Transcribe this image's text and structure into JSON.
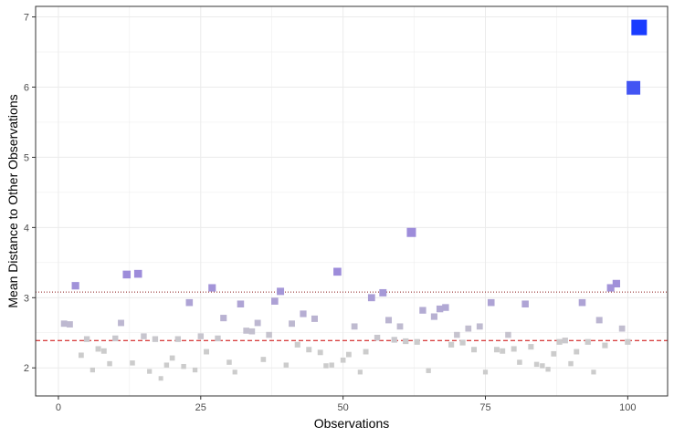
{
  "chart_data": {
    "type": "scatter",
    "title": "",
    "xlabel": "Observations",
    "ylabel": "Mean Distance to Other Observations",
    "xlim": [
      -4,
      107
    ],
    "ylim": [
      1.6,
      7.15
    ],
    "x_ticks": [
      0,
      25,
      50,
      75,
      100
    ],
    "y_ticks": [
      2,
      3,
      4,
      5,
      6,
      7
    ],
    "x_tick_labels": [
      "0",
      "25",
      "50",
      "75",
      "100"
    ],
    "y_tick_labels": [
      "2",
      "3",
      "4",
      "5",
      "6",
      "7"
    ],
    "grid": true,
    "reference_lines": [
      {
        "y": 2.39,
        "style": "dashed",
        "color": "#cc0000"
      },
      {
        "y": 3.08,
        "style": "dotted",
        "color": "#8b1a1a"
      }
    ],
    "x": [
      1,
      2,
      3,
      4,
      5,
      6,
      7,
      8,
      9,
      10,
      11,
      12,
      13,
      14,
      15,
      16,
      17,
      18,
      19,
      20,
      21,
      22,
      23,
      24,
      25,
      26,
      27,
      28,
      29,
      30,
      31,
      32,
      33,
      34,
      35,
      36,
      37,
      38,
      39,
      40,
      41,
      42,
      43,
      44,
      45,
      46,
      47,
      48,
      49,
      50,
      51,
      52,
      53,
      54,
      55,
      56,
      57,
      58,
      59,
      60,
      61,
      62,
      63,
      64,
      65,
      66,
      67,
      68,
      69,
      70,
      71,
      72,
      73,
      74,
      75,
      76,
      77,
      78,
      79,
      80,
      81,
      82,
      83,
      84,
      85,
      86,
      87,
      88,
      89,
      90,
      91,
      92,
      93,
      94,
      95,
      96,
      97,
      98,
      99,
      100,
      101,
      102
    ],
    "y": [
      2.63,
      2.62,
      3.17,
      2.18,
      2.41,
      1.97,
      2.27,
      2.24,
      2.06,
      2.42,
      2.64,
      3.33,
      2.07,
      3.34,
      2.45,
      1.95,
      2.41,
      1.85,
      2.04,
      2.14,
      2.41,
      2.02,
      2.93,
      1.97,
      2.45,
      2.23,
      3.14,
      2.42,
      2.71,
      2.08,
      1.94,
      2.91,
      2.53,
      2.52,
      2.64,
      2.12,
      2.47,
      2.95,
      3.09,
      2.04,
      2.63,
      2.33,
      2.77,
      2.26,
      2.7,
      2.22,
      2.03,
      2.04,
      3.37,
      2.11,
      2.19,
      2.59,
      1.94,
      2.23,
      3.0,
      2.43,
      3.07,
      2.68,
      2.4,
      2.59,
      2.38,
      3.93,
      2.37,
      2.82,
      1.96,
      2.73,
      2.84,
      2.86,
      2.33,
      2.47,
      2.36,
      2.56,
      2.26,
      2.59,
      1.94,
      2.93,
      2.26,
      2.24,
      2.47,
      2.27,
      2.08,
      2.91,
      2.3,
      2.05,
      2.03,
      1.98,
      2.2,
      2.37,
      2.39,
      2.06,
      2.23,
      2.93,
      2.37,
      1.94,
      2.68,
      2.32,
      3.14,
      3.2,
      2.56,
      2.37,
      5.99,
      6.85
    ]
  }
}
